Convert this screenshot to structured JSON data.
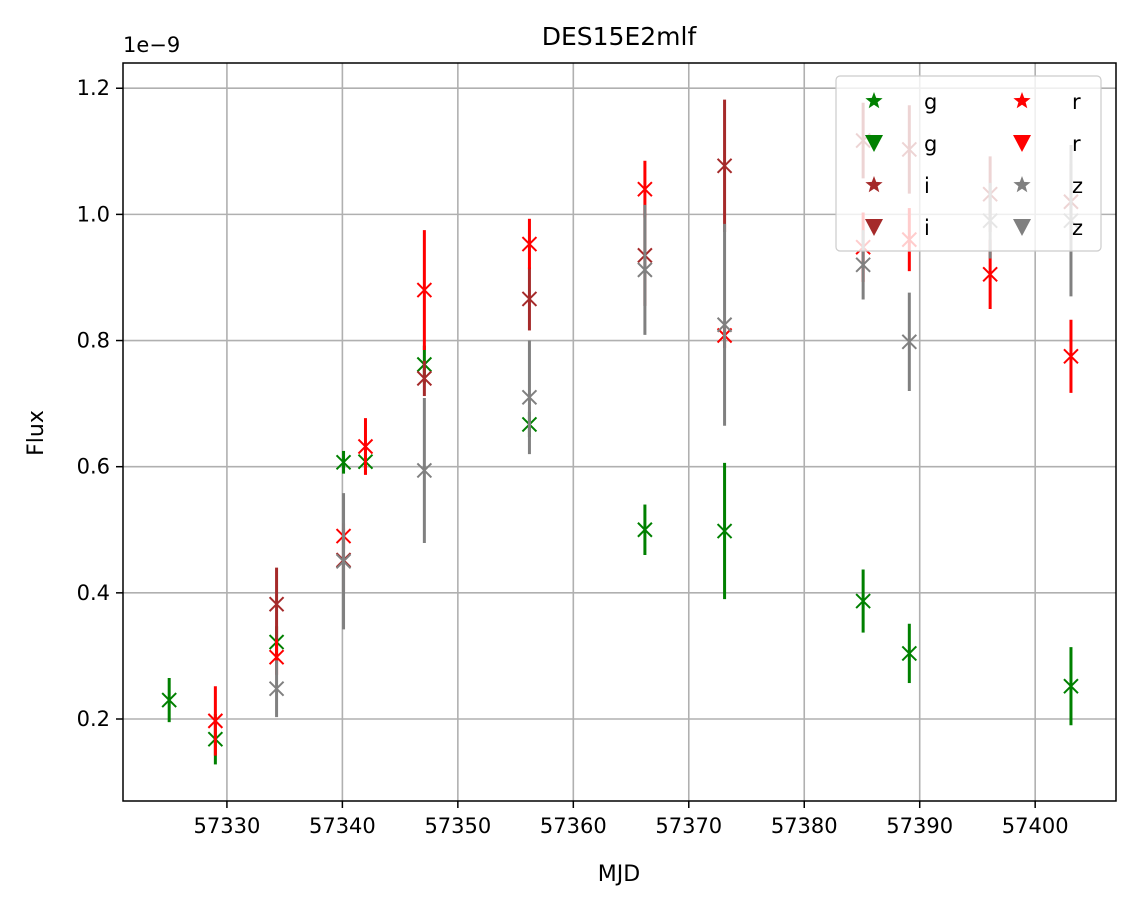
{
  "chart_data": {
    "type": "scatter",
    "title": "DES15E2mlf",
    "xlabel": "MJD",
    "ylabel": "Flux",
    "y_scale_label": "1e−9",
    "xlim": [
      57321,
      57407
    ],
    "ylim": [
      0.07,
      1.24
    ],
    "x_ticks": [
      57330,
      57340,
      57350,
      57360,
      57370,
      57380,
      57390,
      57400
    ],
    "y_ticks": [
      0.2,
      0.4,
      0.6,
      0.8,
      1.0,
      1.2
    ],
    "x_tick_labels": [
      "57330",
      "57340",
      "57350",
      "57360",
      "57370",
      "57380",
      "57390",
      "57400"
    ],
    "y_tick_labels": [
      "0.2",
      "0.4",
      "0.6",
      "0.8",
      "1.0",
      "1.2"
    ],
    "grid": true,
    "legend_position": "top-right",
    "legend": [
      {
        "label": "g",
        "marker": "star",
        "color": "#008000"
      },
      {
        "label": "g",
        "marker": "triangle-down",
        "color": "#008000"
      },
      {
        "label": "i",
        "marker": "star",
        "color": "#a52a2a"
      },
      {
        "label": "i",
        "marker": "triangle-down",
        "color": "#a52a2a"
      },
      {
        "label": "r",
        "marker": "star",
        "color": "#ff0000"
      },
      {
        "label": "r",
        "marker": "triangle-down",
        "color": "#ff0000"
      },
      {
        "label": "z",
        "marker": "star",
        "color": "#808080"
      },
      {
        "label": "z",
        "marker": "triangle-down",
        "color": "#808080"
      }
    ],
    "series": [
      {
        "band": "g",
        "color": "#008000",
        "points": [
          {
            "x": 57325,
            "y": 0.23,
            "err": 0.035
          },
          {
            "x": 57329,
            "y": 0.168,
            "err": 0.04
          },
          {
            "x": 57334.3,
            "y": 0.322,
            "err": 0.025
          },
          {
            "x": 57340.1,
            "y": 0.607,
            "err": 0.018
          },
          {
            "x": 57342,
            "y": 0.608,
            "err": 0.02
          },
          {
            "x": 57347.1,
            "y": 0.762,
            "err": 0.03
          },
          {
            "x": 57356.2,
            "y": 0.667,
            "err": 0.02
          },
          {
            "x": 57366.2,
            "y": 0.5,
            "err": 0.04
          },
          {
            "x": 57373.1,
            "y": 0.498,
            "err": 0.108
          },
          {
            "x": 57385.1,
            "y": 0.387,
            "err": 0.05
          },
          {
            "x": 57389.1,
            "y": 0.304,
            "err": 0.047
          },
          {
            "x": 57403.1,
            "y": 0.252,
            "err": 0.062
          }
        ]
      },
      {
        "band": "i",
        "color": "#a52a2a",
        "points": [
          {
            "x": 57334.3,
            "y": 0.382,
            "err": 0.058
          },
          {
            "x": 57340.1,
            "y": 0.452,
            "err": 0.05
          },
          {
            "x": 57347.1,
            "y": 0.74,
            "err": 0.028
          },
          {
            "x": 57356.2,
            "y": 0.866,
            "err": 0.05
          },
          {
            "x": 57366.2,
            "y": 0.935,
            "err": 0.08
          },
          {
            "x": 57373.1,
            "y": 1.077,
            "err": 0.105
          },
          {
            "x": 57385.1,
            "y": 1.117,
            "err": 0.06
          },
          {
            "x": 57389.1,
            "y": 1.103,
            "err": 0.07
          },
          {
            "x": 57396.1,
            "y": 1.032,
            "err": 0.06
          },
          {
            "x": 57403.1,
            "y": 1.02,
            "err": 0.06
          }
        ]
      },
      {
        "band": "r",
        "color": "#ff0000",
        "points": [
          {
            "x": 57329,
            "y": 0.197,
            "err": 0.055
          },
          {
            "x": 57334.3,
            "y": 0.298,
            "err": 0.028
          },
          {
            "x": 57340.1,
            "y": 0.49,
            "err": 0.02
          },
          {
            "x": 57342,
            "y": 0.632,
            "err": 0.045
          },
          {
            "x": 57347.1,
            "y": 0.88,
            "err": 0.095
          },
          {
            "x": 57356.2,
            "y": 0.953,
            "err": 0.04
          },
          {
            "x": 57366.2,
            "y": 1.04,
            "err": 0.045
          },
          {
            "x": 57373.1,
            "y": 0.808,
            "err": 0.02
          },
          {
            "x": 57385.1,
            "y": 0.948,
            "err": 0.055
          },
          {
            "x": 57389.1,
            "y": 0.96,
            "err": 0.05
          },
          {
            "x": 57396.1,
            "y": 0.905,
            "err": 0.055
          },
          {
            "x": 57403.1,
            "y": 0.775,
            "err": 0.058
          }
        ]
      },
      {
        "band": "z",
        "color": "#808080",
        "points": [
          {
            "x": 57334.3,
            "y": 0.248,
            "err": 0.045
          },
          {
            "x": 57340.1,
            "y": 0.45,
            "err": 0.108
          },
          {
            "x": 57347.1,
            "y": 0.594,
            "err": 0.115
          },
          {
            "x": 57356.2,
            "y": 0.71,
            "err": 0.09
          },
          {
            "x": 57366.2,
            "y": 0.912,
            "err": 0.103
          },
          {
            "x": 57373.1,
            "y": 0.825,
            "err": 0.16
          },
          {
            "x": 57385.1,
            "y": 0.92,
            "err": 0.055
          },
          {
            "x": 57389.1,
            "y": 0.798,
            "err": 0.078
          },
          {
            "x": 57396.1,
            "y": 0.99,
            "err": 0.06
          },
          {
            "x": 57403.1,
            "y": 0.99,
            "err": 0.12
          }
        ]
      }
    ]
  }
}
